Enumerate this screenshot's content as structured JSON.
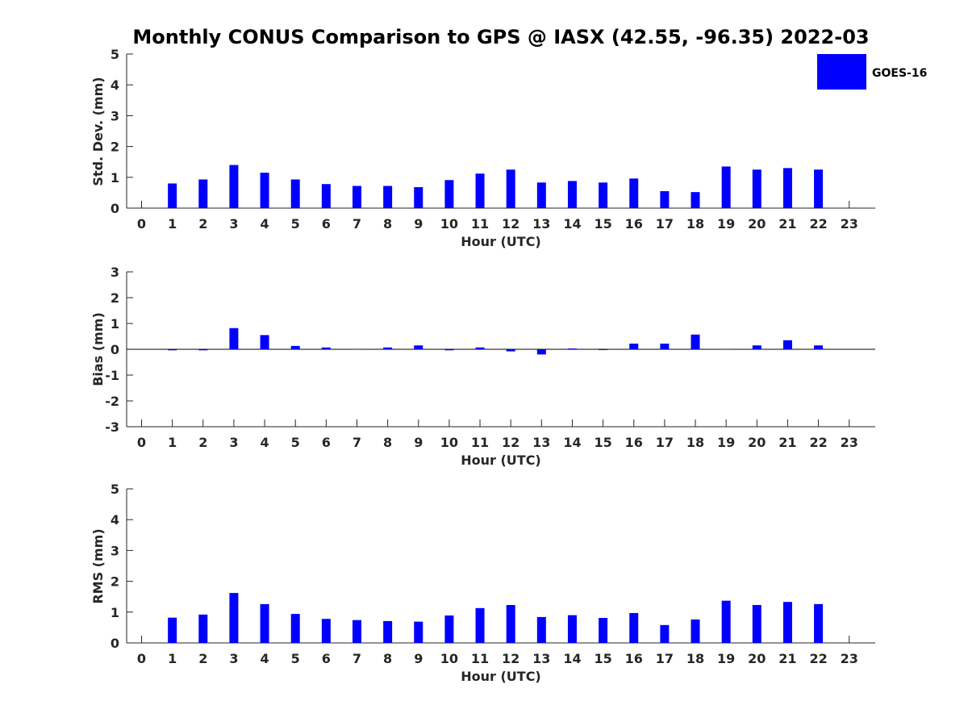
{
  "chart_data": {
    "type": "bar",
    "title": "Monthly CONUS Comparison to GPS @ IASX (42.55, -96.35) 2022-03",
    "colors": {
      "bar": "#0000ff",
      "axis": "#262626",
      "background": "#ffffff"
    },
    "legend": {
      "entries": [
        "GOES-16"
      ],
      "placement": "top-right"
    },
    "grid": false,
    "panels": [
      {
        "ylabel": "Std. Dev. (mm)",
        "xlabel": "Hour (UTC)",
        "ylim": [
          0,
          5
        ],
        "yticks": [
          "0",
          "1",
          "2",
          "3",
          "4",
          "5"
        ],
        "xticks": [
          "0",
          "1",
          "2",
          "3",
          "4",
          "5",
          "6",
          "7",
          "8",
          "9",
          "10",
          "11",
          "12",
          "13",
          "14",
          "15",
          "16",
          "17",
          "18",
          "19",
          "20",
          "21",
          "22",
          "23"
        ],
        "series": [
          {
            "name": "GOES-16",
            "values": [
              null,
              0.8,
              0.93,
              1.4,
              1.15,
              0.93,
              0.78,
              0.72,
              0.72,
              0.68,
              0.91,
              1.12,
              1.25,
              0.83,
              0.88,
              0.83,
              0.96,
              0.55,
              0.52,
              1.35,
              1.25,
              1.3,
              1.25,
              null
            ]
          }
        ]
      },
      {
        "ylabel": "Bias (mm)",
        "xlabel": "Hour (UTC)",
        "ylim": [
          -3,
          3
        ],
        "yticks": [
          "-3",
          "-2",
          "-1",
          "0",
          "1",
          "2",
          "3"
        ],
        "xticks": [
          "0",
          "1",
          "2",
          "3",
          "4",
          "5",
          "6",
          "7",
          "8",
          "9",
          "10",
          "11",
          "12",
          "13",
          "14",
          "15",
          "16",
          "17",
          "18",
          "19",
          "20",
          "21",
          "22",
          "23"
        ],
        "zero_line": true,
        "series": [
          {
            "name": "GOES-16",
            "values": [
              null,
              -0.04,
              -0.04,
              0.82,
              0.55,
              0.13,
              0.07,
              0.0,
              0.07,
              0.15,
              -0.04,
              0.07,
              -0.08,
              -0.2,
              0.03,
              -0.03,
              0.22,
              0.22,
              0.57,
              0.0,
              0.15,
              0.35,
              0.15,
              null
            ]
          }
        ]
      },
      {
        "ylabel": "RMS (mm)",
        "xlabel": "Hour (UTC)",
        "ylim": [
          0,
          5
        ],
        "yticks": [
          "0",
          "1",
          "2",
          "3",
          "4",
          "5"
        ],
        "xticks": [
          "0",
          "1",
          "2",
          "3",
          "4",
          "5",
          "6",
          "7",
          "8",
          "9",
          "10",
          "11",
          "12",
          "13",
          "14",
          "15",
          "16",
          "17",
          "18",
          "19",
          "20",
          "21",
          "22",
          "23"
        ],
        "series": [
          {
            "name": "GOES-16",
            "values": [
              null,
              0.82,
              0.92,
              1.62,
              1.26,
              0.94,
              0.78,
              0.74,
              0.71,
              0.69,
              0.89,
              1.13,
              1.23,
              0.84,
              0.9,
              0.81,
              0.97,
              0.58,
              0.76,
              1.37,
              1.23,
              1.33,
              1.26,
              null
            ]
          }
        ]
      }
    ]
  }
}
